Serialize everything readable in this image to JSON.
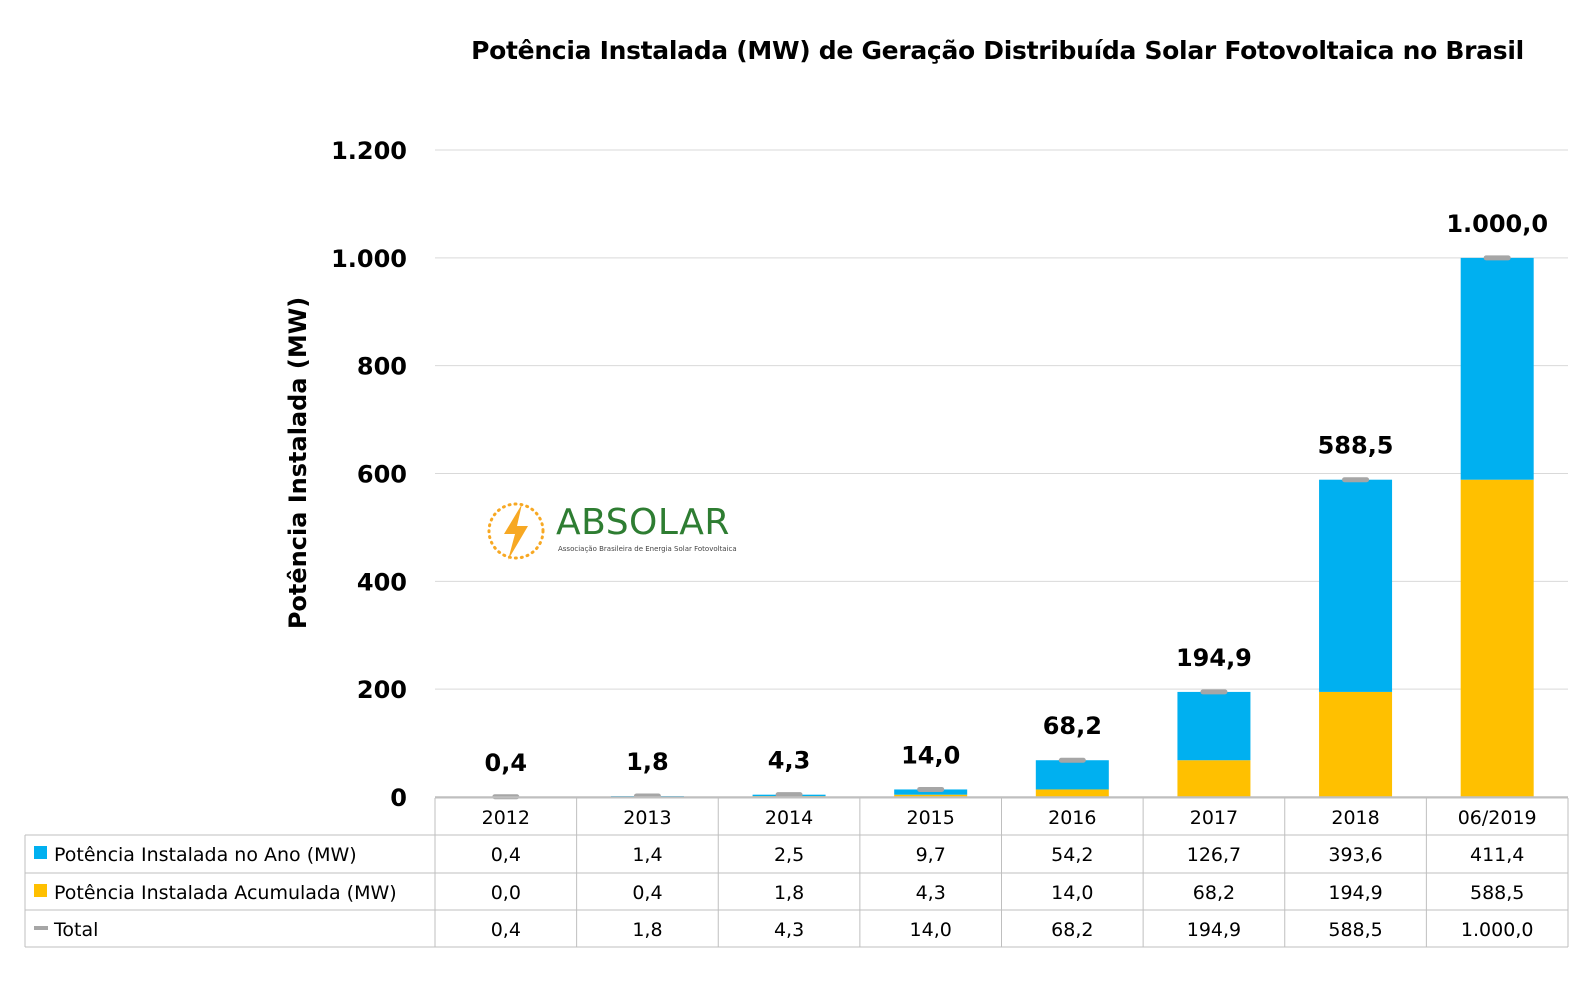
{
  "chart_data": {
    "type": "bar",
    "stacked": true,
    "title": "Potência Instalada (MW) de Geração Distribuída Solar Fotovoltaica no Brasil",
    "xlabel": "",
    "ylabel": "Potência Instalada (MW)",
    "ylim": [
      0,
      1200
    ],
    "yticks": [
      0,
      200,
      400,
      600,
      800,
      1000,
      1200
    ],
    "ytick_labels": [
      "0",
      "200",
      "400",
      "600",
      "800",
      "1.000",
      "1.200"
    ],
    "grid": true,
    "legend_placement": "data-table",
    "categories": [
      "2012",
      "2013",
      "2014",
      "2015",
      "2016",
      "2017",
      "2018",
      "06/2019"
    ],
    "series": [
      {
        "name": "Potência Instalada no Ano (MW)",
        "color": "#00b0f0",
        "values": [
          0.4,
          1.4,
          2.5,
          9.7,
          54.2,
          126.7,
          393.6,
          411.4
        ],
        "labels": [
          "0,4",
          "1,4",
          "2,5",
          "9,7",
          "54,2",
          "126,7",
          "393,6",
          "411,4"
        ]
      },
      {
        "name": "Potência Instalada Acumulada (MW)",
        "color": "#ffc000",
        "values": [
          0.0,
          0.4,
          1.8,
          4.3,
          14.0,
          68.2,
          194.9,
          588.5
        ],
        "labels": [
          "0,0",
          "0,4",
          "1,8",
          "4,3",
          "14,0",
          "68,2",
          "194,9",
          "588,5"
        ]
      },
      {
        "name": "Total",
        "color": "#a6a6a6",
        "marker": "dash",
        "values": [
          0.4,
          1.8,
          4.3,
          14.0,
          68.2,
          194.9,
          588.5,
          1000.0
        ],
        "labels": [
          "0,4",
          "1,8",
          "4,3",
          "14,0",
          "68,2",
          "194,9",
          "588,5",
          "1.000,0"
        ]
      }
    ]
  },
  "logo": {
    "name": "ABSOLAR",
    "subtitle": "Associação Brasileira de Energia Solar Fotovoltaica",
    "colors": {
      "sun": "#f7a823",
      "text": "#2e7d32"
    }
  }
}
